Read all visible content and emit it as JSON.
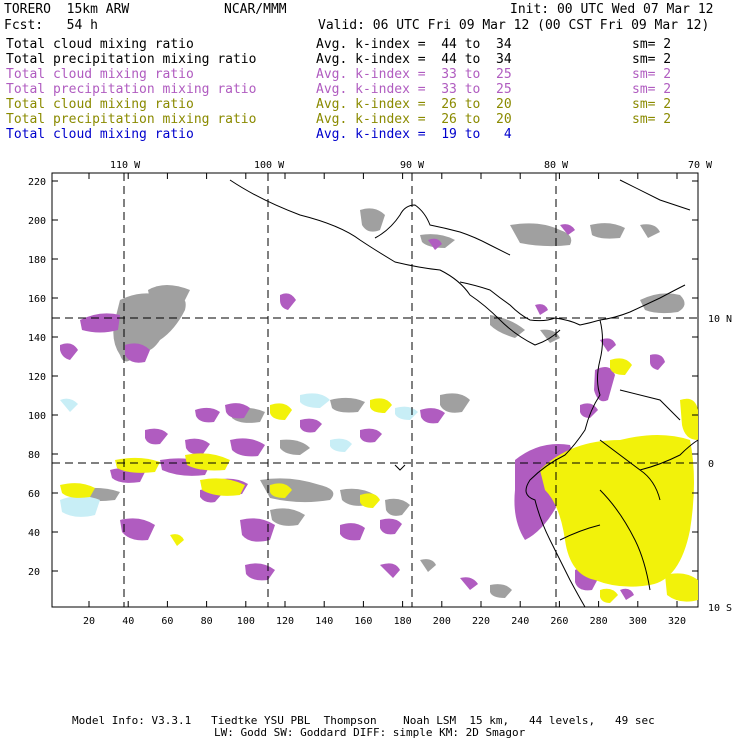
{
  "header": {
    "model": "TORERO  15km ARW",
    "org": "NCAR/MMM",
    "init": "Init: 00 UTC Wed 07 Mar 12",
    "fcst": "Fcst:   54 h",
    "valid": "Valid: 06 UTC Fri 09 Mar 12 (00 CST Fri 09 Mar 12)"
  },
  "legend": [
    {
      "field": "Total cloud mixing ratio",
      "kindex": "Avg. k-index =  44 to  34",
      "sm": "sm= 2",
      "color": "#000000"
    },
    {
      "field": "Total precipitation mixing ratio",
      "kindex": "Avg. k-index =  44 to  34",
      "sm": "sm= 2",
      "color": "#000000"
    },
    {
      "field": "Total cloud mixing ratio",
      "kindex": "Avg. k-index =  33 to  25",
      "sm": "sm= 2",
      "color": "#b05cc0"
    },
    {
      "field": "Total precipitation mixing ratio",
      "kindex": "Avg. k-index =  33 to  25",
      "sm": "sm= 2",
      "color": "#b05cc0"
    },
    {
      "field": "Total cloud mixing ratio",
      "kindex": "Avg. k-index =  26 to  20",
      "sm": "sm= 2",
      "color": "#8a8a00"
    },
    {
      "field": "Total precipitation mixing ratio",
      "kindex": "Avg. k-index =  26 to  20",
      "sm": "sm= 2",
      "color": "#8a8a00"
    },
    {
      "field": "Total cloud mixing ratio",
      "kindex": "Avg. k-index =  19 to   4",
      "sm": "",
      "color": "#0000cc"
    }
  ],
  "map": {
    "lon_labels": [
      "110 W",
      "100 W",
      "90 W",
      "80 W",
      "70 W"
    ],
    "lat_labels": [
      "10 N",
      "0",
      "10 S"
    ],
    "y_ticks": [
      "220",
      "200",
      "180",
      "160",
      "140",
      "120",
      "100",
      "80",
      "60",
      "40",
      "20"
    ],
    "x_ticks": [
      "20",
      "40",
      "60",
      "80",
      "100",
      "120",
      "140",
      "160",
      "180",
      "200",
      "220",
      "240",
      "260",
      "280",
      "300",
      "320"
    ],
    "colors": {
      "gray": "#a0a0a0",
      "purple": "#b05cc0",
      "yellow": "#f2f20a",
      "lightblue": "#c8eef6",
      "coast": "#000000"
    }
  },
  "footer": {
    "line1": "Model Info: V3.3.1   Tiedtke YSU PBL  Thompson    Noah LSM  15 km,   44 levels,   49 sec",
    "line2": "LW: Godd SW: Goddard DIFF: simple KM: 2D Smagor"
  }
}
